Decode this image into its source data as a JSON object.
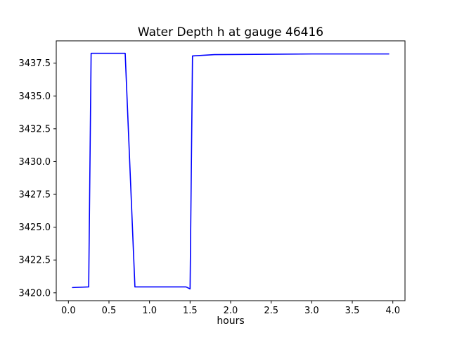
{
  "figure": {
    "background": "#ffffff"
  },
  "chart_data": {
    "type": "line",
    "title": "Water Depth h at gauge 46416",
    "xlabel": "hours",
    "ylabel": "",
    "xlim": [
      -0.15,
      4.15
    ],
    "ylim": [
      3419.4,
      3439.2
    ],
    "grid": false,
    "legend": null,
    "line_color": "#0000ff",
    "axis_color": "#000000",
    "xticks": [
      {
        "value": 0.0,
        "label": "0.0"
      },
      {
        "value": 0.5,
        "label": "0.5"
      },
      {
        "value": 1.0,
        "label": "1.0"
      },
      {
        "value": 1.5,
        "label": "1.5"
      },
      {
        "value": 2.0,
        "label": "2.0"
      },
      {
        "value": 2.5,
        "label": "2.5"
      },
      {
        "value": 3.0,
        "label": "3.0"
      },
      {
        "value": 3.5,
        "label": "3.5"
      },
      {
        "value": 4.0,
        "label": "4.0"
      }
    ],
    "yticks": [
      {
        "value": 3420.0,
        "label": "3420.0"
      },
      {
        "value": 3422.5,
        "label": "3422.5"
      },
      {
        "value": 3425.0,
        "label": "3425.0"
      },
      {
        "value": 3427.5,
        "label": "3427.5"
      },
      {
        "value": 3430.0,
        "label": "3430.0"
      },
      {
        "value": 3432.5,
        "label": "3432.5"
      },
      {
        "value": 3435.0,
        "label": "3435.0"
      },
      {
        "value": 3437.5,
        "label": "3437.5"
      }
    ],
    "series": [
      {
        "name": "water-depth-h",
        "x": [
          0.05,
          0.25,
          0.28,
          0.7,
          0.82,
          1.45,
          1.5,
          1.53,
          1.8,
          3.0,
          3.95
        ],
        "y": [
          3420.4,
          3420.45,
          3438.25,
          3438.25,
          3420.45,
          3420.45,
          3420.3,
          3438.05,
          3438.15,
          3438.2,
          3438.2
        ]
      }
    ]
  }
}
